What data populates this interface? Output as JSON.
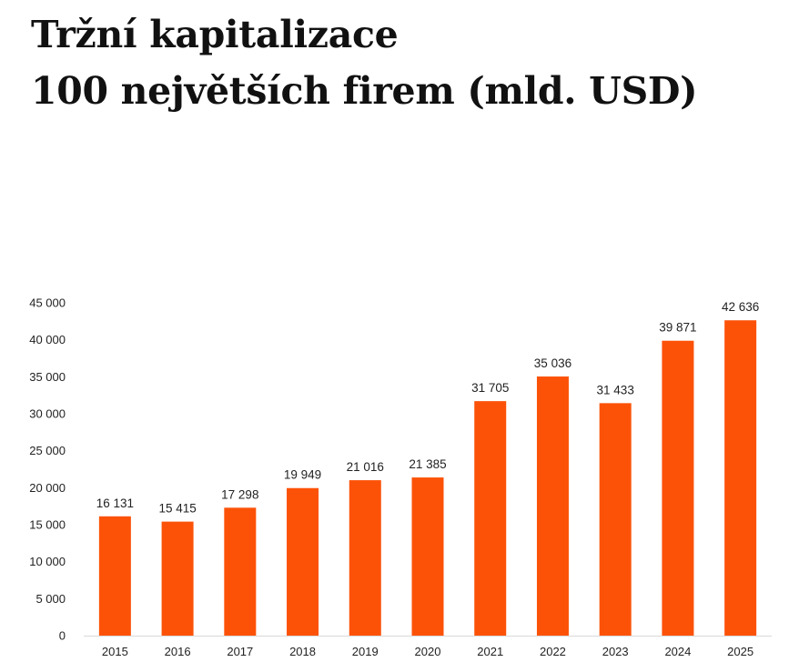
{
  "chart_data": {
    "type": "bar",
    "title_lines": [
      "Tržní kapitalizace",
      "100 největších firem (mld. USD)"
    ],
    "categories": [
      "2015",
      "2016",
      "2017",
      "2018",
      "2019",
      "2020",
      "2021",
      "2022",
      "2023",
      "2024",
      "2025"
    ],
    "values": [
      16131,
      15415,
      17298,
      19949,
      21016,
      21385,
      31705,
      35036,
      31433,
      39871,
      42636
    ],
    "data_labels": [
      "16 131",
      "15 415",
      "17 298",
      "19 949",
      "21 016",
      "21 385",
      "31 705",
      "35 036",
      "31 433",
      "39 871",
      "42 636"
    ],
    "ylim": [
      0,
      45000
    ],
    "yticks": [
      0,
      5000,
      10000,
      15000,
      20000,
      25000,
      30000,
      35000,
      40000,
      45000
    ],
    "ytick_labels": [
      "0",
      "5 000",
      "10 000",
      "15 000",
      "20 000",
      "25 000",
      "30 000",
      "35 000",
      "40 000",
      "45 000"
    ],
    "xlabel": "",
    "ylabel": "",
    "grid": false,
    "legend": "none",
    "bar_color": "#fc5208"
  }
}
